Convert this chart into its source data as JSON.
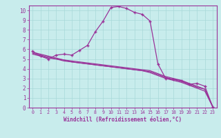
{
  "xlabel": "Windchill (Refroidissement éolien,°C)",
  "xlim": [
    -0.5,
    23.5
  ],
  "ylim": [
    0,
    10.5
  ],
  "xticks": [
    0,
    1,
    2,
    3,
    4,
    5,
    6,
    7,
    8,
    9,
    10,
    11,
    12,
    13,
    14,
    15,
    16,
    17,
    18,
    19,
    20,
    21,
    22,
    23
  ],
  "yticks": [
    0,
    1,
    2,
    3,
    4,
    5,
    6,
    7,
    8,
    9,
    10
  ],
  "bg_color": "#c8ecec",
  "grid_color": "#a8d8d8",
  "line_color": "#993399",
  "curve1_x": [
    0,
    1,
    2,
    3,
    4,
    5,
    6,
    7,
    8,
    9,
    10,
    11,
    12,
    13,
    14,
    15,
    16,
    17,
    18,
    19,
    20,
    21,
    22,
    23
  ],
  "curve1_y": [
    5.5,
    5.3,
    5.1,
    5.0,
    4.9,
    4.8,
    4.7,
    4.6,
    4.5,
    4.4,
    4.3,
    4.2,
    4.1,
    4.0,
    3.9,
    3.8,
    3.5,
    3.2,
    3.0,
    2.8,
    2.5,
    2.2,
    1.9,
    0.1
  ],
  "curve2_x": [
    0,
    1,
    2,
    3,
    4,
    5,
    6,
    7,
    8,
    9,
    10,
    11,
    12,
    13,
    14,
    15,
    16,
    17,
    18,
    19,
    20,
    21,
    22,
    23
  ],
  "curve2_y": [
    5.6,
    5.4,
    5.2,
    5.0,
    4.8,
    4.7,
    4.6,
    4.5,
    4.4,
    4.3,
    4.2,
    4.1,
    4.0,
    3.9,
    3.8,
    3.7,
    3.4,
    3.1,
    2.9,
    2.7,
    2.4,
    2.1,
    1.9,
    0.1
  ],
  "curve3_x": [
    0,
    1,
    2,
    3,
    4,
    5,
    6,
    7,
    8,
    9,
    10,
    11,
    12,
    13,
    14,
    15,
    16,
    17,
    18,
    19,
    20,
    21,
    22,
    23
  ],
  "curve3_y": [
    5.7,
    5.5,
    5.3,
    5.1,
    4.9,
    4.7,
    4.6,
    4.5,
    4.4,
    4.3,
    4.2,
    4.1,
    4.0,
    3.9,
    3.8,
    3.6,
    3.3,
    3.0,
    2.8,
    2.6,
    2.3,
    2.0,
    1.7,
    0.1
  ],
  "curve4_x": [
    0,
    1,
    2,
    3,
    4,
    5,
    6,
    7,
    8,
    9,
    10,
    11,
    12,
    13,
    14,
    15,
    16,
    17,
    18,
    19,
    20,
    21,
    22,
    23
  ],
  "curve4_y": [
    5.8,
    5.3,
    5.0,
    5.4,
    5.5,
    5.4,
    5.9,
    6.4,
    7.8,
    8.9,
    10.3,
    10.4,
    10.2,
    9.8,
    9.6,
    8.9,
    4.5,
    3.0,
    2.9,
    2.8,
    2.4,
    2.5,
    2.2,
    0.1
  ],
  "curve4_markers_x": [
    0,
    1,
    2,
    3,
    4,
    5,
    6,
    7,
    8,
    10,
    11,
    12,
    13,
    14,
    15,
    16,
    17,
    19,
    20,
    21,
    22,
    23
  ],
  "curve4_markers_y": [
    5.8,
    5.3,
    5.0,
    5.4,
    5.5,
    5.4,
    5.9,
    6.4,
    7.8,
    10.3,
    10.4,
    10.2,
    9.8,
    9.6,
    8.9,
    4.5,
    3.0,
    2.8,
    2.4,
    2.5,
    2.2,
    0.1
  ]
}
